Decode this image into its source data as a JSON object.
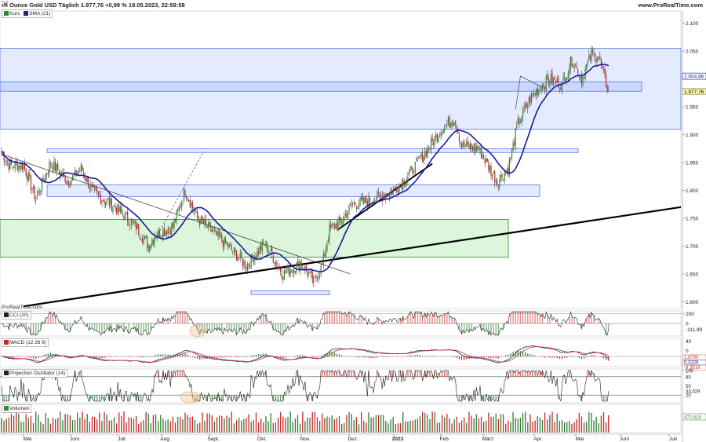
{
  "header": {
    "title": "Ounce Gold USD Täglich 1.977,76 +0,99 % 19.05.2023, 22:59:58",
    "site": "www.ProRealTime.com"
  },
  "main_legend": [
    {
      "label": "Kurs",
      "color": "#2e8b2e"
    },
    {
      "label": "SMA (21)",
      "color": "#1a237e"
    }
  ],
  "watermark": "ProRealTime.com",
  "colors": {
    "up": "#2e8b2e",
    "down": "#c62828",
    "sma": "#1a1aa0",
    "blue_zone": "#dfe8ff",
    "green_zone": "#d5f5d5",
    "trend": "#000000"
  },
  "price_axis": {
    "ticks": [
      "2.100",
      "2.050",
      "2.004,86",
      "1.977,76",
      "1.950",
      "1.900",
      "1.850",
      "1.800",
      "1.750",
      "1.700",
      "1.650",
      "1.600"
    ],
    "tags": [
      {
        "label": "2.004,86",
        "kind": "sma"
      },
      {
        "label": "1.977,76",
        "kind": "price"
      }
    ]
  },
  "x_axis": {
    "labels": [
      "Mai",
      "Juni",
      "Juli",
      "Aug.",
      "Sept.",
      "Okt.",
      "Nov.",
      "Dez.",
      "2023",
      "Feb.",
      "März",
      "Apr.",
      "Mai",
      "Juni",
      "Juli"
    ]
  },
  "indicators": [
    {
      "name": "CCI (20)",
      "ticks": [
        "200",
        "0",
        "-111,99"
      ],
      "current": "-111,99"
    },
    {
      "name": "MACD (12 26 9)",
      "ticks": [
        "40",
        "0"
      ],
      "values": [
        "2,8790",
        "0,3229",
        "-8,3519"
      ]
    },
    {
      "name": "Projection Oszillator (14)",
      "ticks": [
        "100",
        "80",
        "50",
        "33,029",
        "20"
      ],
      "current": "33,029"
    },
    {
      "name": "Volumen",
      "current": "472.818"
    }
  ],
  "chart_data": {
    "type": "candlestick",
    "title": "Ounce Gold USD Täglich",
    "y_range": [
      1590,
      2120
    ],
    "months": [
      "Mai",
      "Juni",
      "Juli",
      "Aug.",
      "Sept.",
      "Okt.",
      "Nov.",
      "Dez.",
      "2023",
      "Feb.",
      "März",
      "Apr.",
      "Mai",
      "Juni",
      "Juli"
    ],
    "anchors": [
      [
        0,
        1870
      ],
      [
        6,
        1845
      ],
      [
        18,
        1845
      ],
      [
        28,
        1785
      ],
      [
        40,
        1850
      ],
      [
        55,
        1815
      ],
      [
        65,
        1840
      ],
      [
        75,
        1795
      ],
      [
        90,
        1775
      ],
      [
        110,
        1735
      ],
      [
        120,
        1700
      ],
      [
        125,
        1720
      ],
      [
        140,
        1735
      ],
      [
        150,
        1800
      ],
      [
        160,
        1750
      ],
      [
        170,
        1730
      ],
      [
        185,
        1700
      ],
      [
        200,
        1665
      ],
      [
        215,
        1705
      ],
      [
        230,
        1650
      ],
      [
        245,
        1670
      ],
      [
        255,
        1635
      ],
      [
        262,
        1665
      ],
      [
        268,
        1730
      ],
      [
        278,
        1745
      ],
      [
        286,
        1775
      ],
      [
        300,
        1780
      ],
      [
        320,
        1800
      ],
      [
        330,
        1820
      ],
      [
        345,
        1865
      ],
      [
        360,
        1910
      ],
      [
        370,
        1930
      ],
      [
        376,
        1880
      ],
      [
        390,
        1875
      ],
      [
        405,
        1815
      ],
      [
        414,
        1840
      ],
      [
        422,
        1920
      ],
      [
        432,
        1965
      ],
      [
        440,
        1985
      ],
      [
        448,
        2000
      ],
      [
        458,
        1990
      ],
      [
        466,
        2035
      ],
      [
        474,
        2000
      ],
      [
        482,
        2045
      ],
      [
        488,
        2040
      ],
      [
        492,
        2005
      ],
      [
        496,
        1978
      ]
    ],
    "sma_current": 2004.86,
    "last_close": 1977.76,
    "zones": [
      {
        "type": "resistance",
        "range": [
          1910,
          2055
        ]
      },
      {
        "type": "resistance",
        "range": [
          1978,
          1995
        ]
      },
      {
        "type": "resistance",
        "range": [
          1868,
          1875
        ]
      },
      {
        "type": "support",
        "range": [
          1789,
          1810
        ]
      },
      {
        "type": "support",
        "range": [
          1680,
          1748
        ]
      },
      {
        "type": "support",
        "range": [
          1613,
          1620
        ]
      }
    ],
    "indicator_series": [
      "CCI (20)",
      "MACD (12 26 9)",
      "Projection Oszillator (14)",
      "Volumen"
    ]
  }
}
